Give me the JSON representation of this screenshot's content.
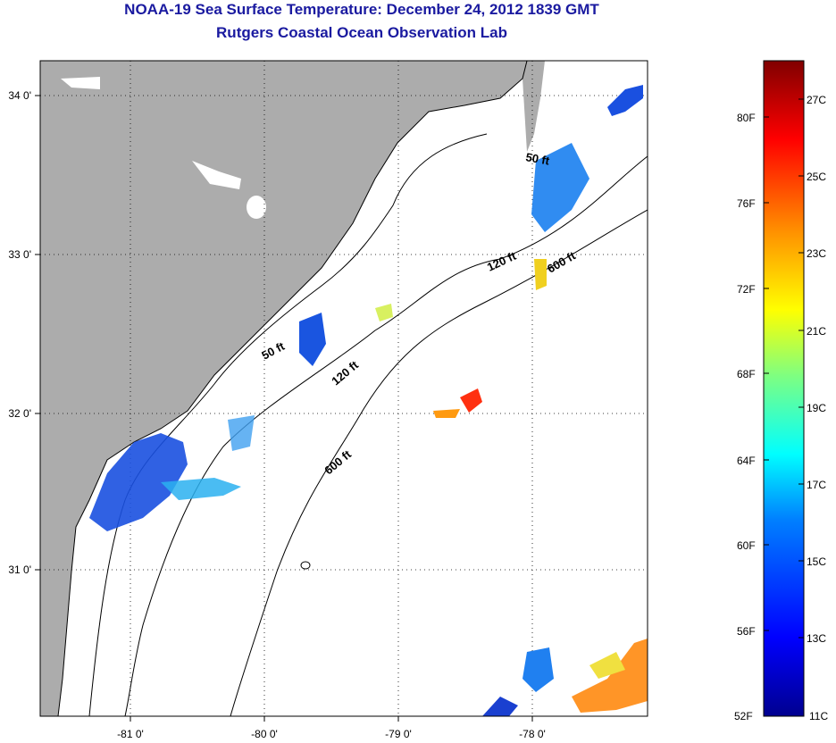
{
  "header": {
    "title": "NOAA-19 Sea Surface Temperature:  December 24, 2012 1839 GMT",
    "subtitle": "Rutgers Coastal Ocean Observation Lab"
  },
  "map": {
    "lon_ticks": [
      "-81 0'",
      "-80 0'",
      "-79 0'",
      "-78 0'"
    ],
    "lat_ticks": [
      "34 0'",
      "33 0'",
      "32 0'",
      "31 0'"
    ],
    "isobath_labels": [
      "50 ft",
      "120 ft",
      "600 ft",
      "50 ft",
      "120 ft",
      "600 ft"
    ],
    "colors": {
      "land": "#acacac",
      "coast": "#000000"
    }
  },
  "colorbar": {
    "fahrenheit_labels": [
      "80F",
      "76F",
      "72F",
      "68F",
      "64F",
      "60F",
      "56F",
      "52F"
    ],
    "celsius_labels": [
      "27C",
      "25C",
      "23C",
      "21C",
      "19C",
      "17C",
      "15C",
      "13C",
      "11C"
    ],
    "range_c": [
      11,
      28
    ]
  }
}
